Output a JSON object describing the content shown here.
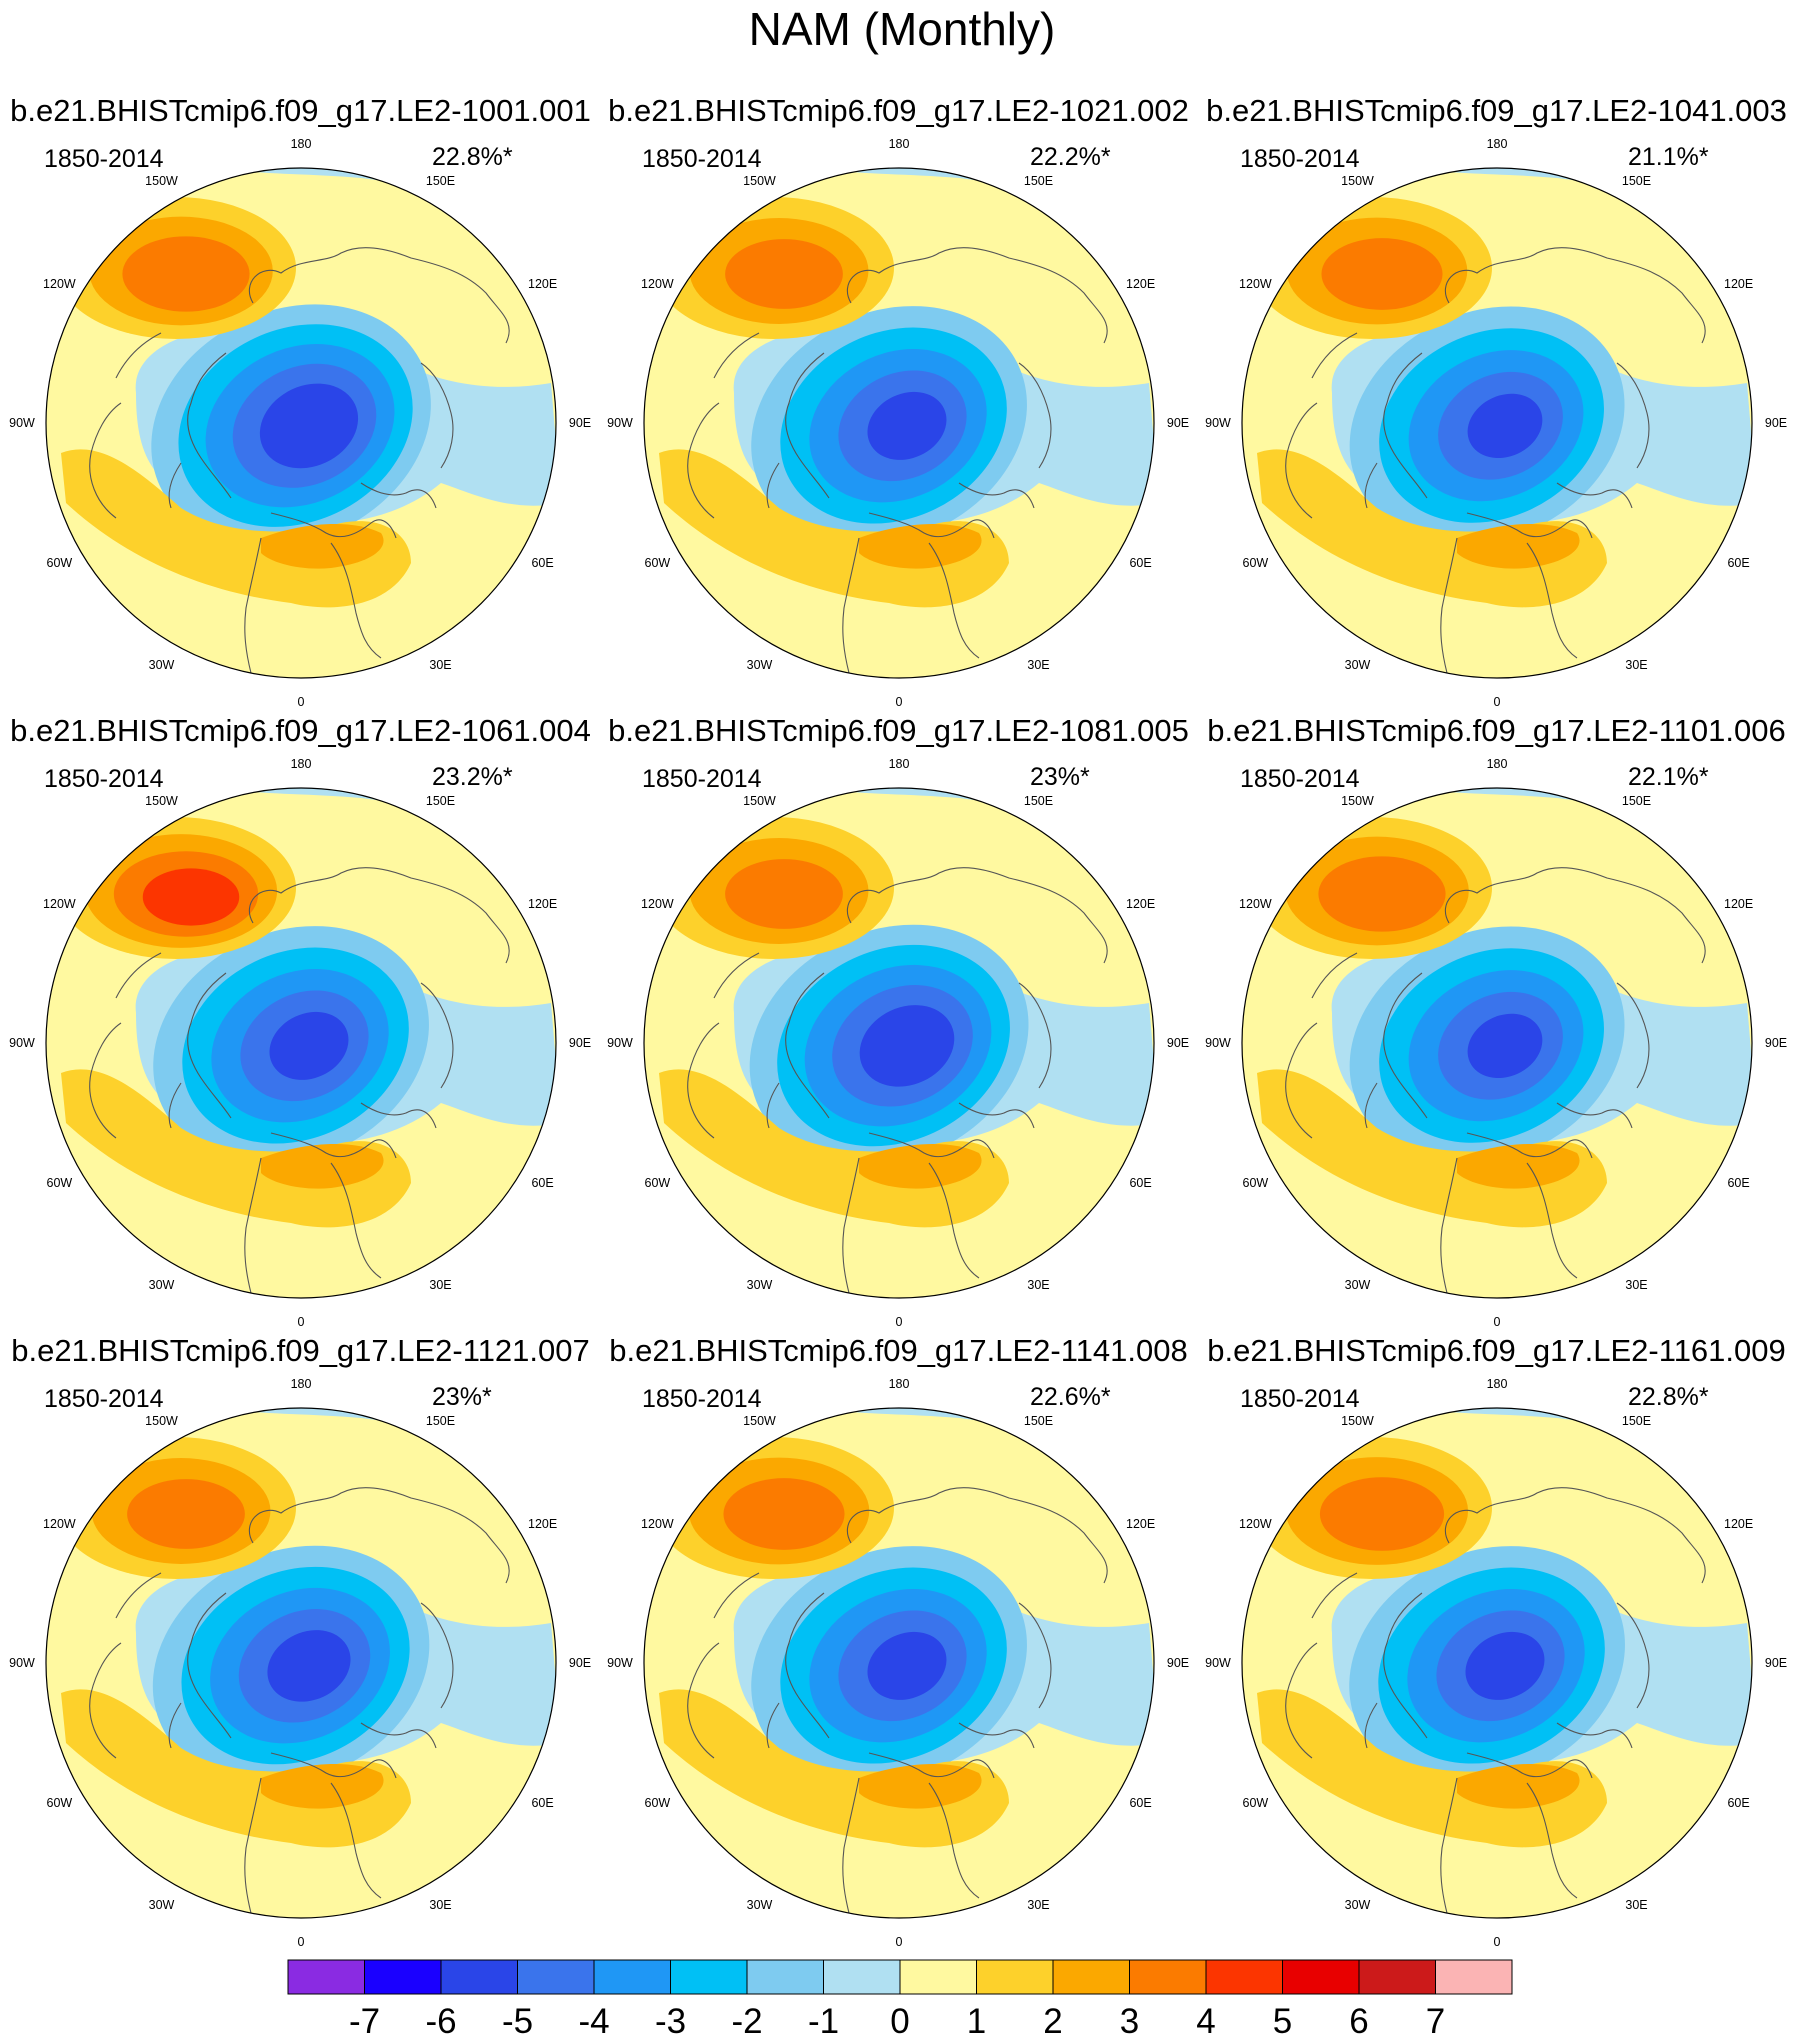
{
  "title": "NAM (Monthly)",
  "panels": [
    {
      "name": "b.e21.BHISTcmip6.f09_g17.LE2-1001.001",
      "years": "1850-2014",
      "pct": "22.8%*",
      "pos_peak": 3.6,
      "neg_peak": -5.8
    },
    {
      "name": "b.e21.BHISTcmip6.f09_g17.LE2-1021.002",
      "years": "1850-2014",
      "pct": "22.2%*",
      "pos_peak": 3.3,
      "neg_peak": -5.3
    },
    {
      "name": "b.e21.BHISTcmip6.f09_g17.LE2-1041.003",
      "years": "1850-2014",
      "pct": "21.1%*",
      "pos_peak": 3.4,
      "neg_peak": -5.2
    },
    {
      "name": "b.e21.BHISTcmip6.f09_g17.LE2-1061.004",
      "years": "1850-2014",
      "pct": "23.2%*",
      "pos_peak": 4.3,
      "neg_peak": -5.3
    },
    {
      "name": "b.e21.BHISTcmip6.f09_g17.LE2-1081.005",
      "years": "1850-2014",
      "pct": "23%*",
      "pos_peak": 3.3,
      "neg_peak": -5.7
    },
    {
      "name": "b.e21.BHISTcmip6.f09_g17.LE2-1101.006",
      "years": "1850-2014",
      "pct": "22.1%*",
      "pos_peak": 3.6,
      "neg_peak": -5.2
    },
    {
      "name": "b.e21.BHISTcmip6.f09_g17.LE2-1121.007",
      "years": "1850-2014",
      "pct": "23%*",
      "pos_peak": 3.3,
      "neg_peak": -5.4
    },
    {
      "name": "b.e21.BHISTcmip6.f09_g17.LE2-1141.008",
      "years": "1850-2014",
      "pct": "22.6%*",
      "pos_peak": 3.4,
      "neg_peak": -5.3
    },
    {
      "name": "b.e21.BHISTcmip6.f09_g17.LE2-1161.009",
      "years": "1850-2014",
      "pct": "22.8%*",
      "pos_peak": 3.5,
      "neg_peak": -5.3
    }
  ],
  "lon_labels": [
    "180",
    "150E",
    "120E",
    "90E",
    "60E",
    "30E",
    "0",
    "30W",
    "60W",
    "90W",
    "120W",
    "150W"
  ],
  "colorbar": {
    "labels": [
      "-7",
      "-6",
      "-5",
      "-4",
      "-3",
      "-2",
      "-1",
      "0",
      "1",
      "2",
      "3",
      "4",
      "5",
      "6",
      "7"
    ],
    "colors": [
      "#8a2be2",
      "#1a00ff",
      "#2a45e8",
      "#3a74ec",
      "#1f97f5",
      "#00c0f5",
      "#7ecbf0",
      "#b0e0f2",
      "#fff9a0",
      "#fdd12b",
      "#fba800",
      "#fb7b00",
      "#fc3500",
      "#e80000",
      "#cc1a1a",
      "#fbb4b4"
    ]
  }
}
